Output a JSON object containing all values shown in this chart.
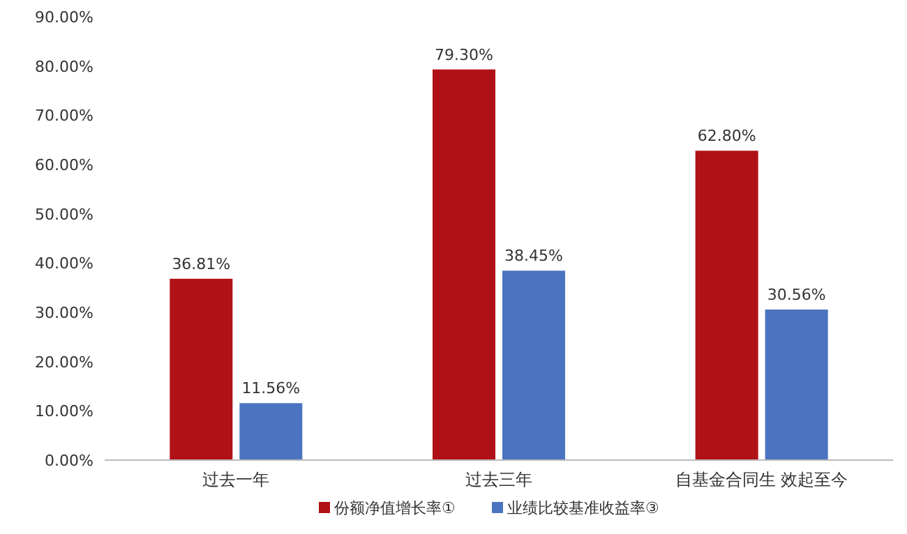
{
  "chart_data": {
    "type": "bar",
    "categories": [
      "过去一年",
      "过去三年",
      "自基金合同生 效起至今"
    ],
    "series": [
      {
        "name": "份额净值增长率①",
        "color": "#b01116",
        "values": [
          36.81,
          79.3,
          62.8
        ],
        "value_labels": [
          "36.81%",
          "79.30%",
          "62.80%"
        ]
      },
      {
        "name": "业绩比较基准收益率③",
        "color": "#4a74bf",
        "values": [
          11.56,
          38.45,
          30.56
        ],
        "value_labels": [
          "11.56%",
          "38.45%",
          "30.56%"
        ]
      }
    ],
    "ylim": [
      0,
      90
    ],
    "yticks": [
      {
        "value": 0,
        "label": "0.00%"
      },
      {
        "value": 10,
        "label": "10.00%"
      },
      {
        "value": 20,
        "label": "20.00%"
      },
      {
        "value": 30,
        "label": "30.00%"
      },
      {
        "value": 40,
        "label": "40.00%"
      },
      {
        "value": 50,
        "label": "50.00%"
      },
      {
        "value": 60,
        "label": "60.00%"
      },
      {
        "value": 70,
        "label": "70.00%"
      },
      {
        "value": 80,
        "label": "80.00%"
      },
      {
        "value": 90,
        "label": "90.00%"
      }
    ],
    "grid": false,
    "legend": "bottom"
  }
}
